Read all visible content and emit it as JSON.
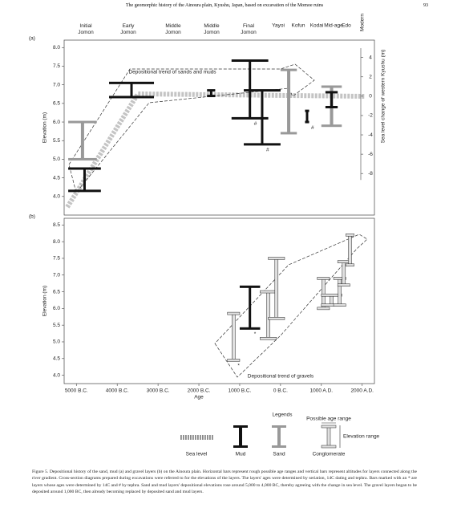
{
  "header": {
    "title": "The geomorphic history of the Ainoura plain, Kyushu, Japan, based on excavation of the Momoe ruins",
    "page": "93"
  },
  "figure": {
    "xlim": [
      -5300,
      2300
    ],
    "panels": [
      {
        "label": "(a)",
        "ylabel": "Elevation (m)",
        "ylim": [
          3.5,
          8.2
        ],
        "yticks": [
          {
            "value": 4,
            "label": "4.0"
          },
          4.5,
          {
            "value": 5,
            "label": "5.0"
          },
          5.5,
          {
            "value": 6,
            "label": "6.0"
          },
          6.5,
          {
            "value": 7,
            "label": "7.0"
          },
          7.5,
          {
            "value": 8,
            "label": "8.0"
          }
        ],
        "y2label": "Sea level change of western Kyushu (m)",
        "y2lim": [
          -12.3,
          5.8
        ],
        "y2ticks": [
          -8,
          -6,
          -4,
          -2,
          0,
          2,
          4
        ],
        "periods": [
          "Initial Jomon",
          "Early Jomon",
          "Middle Jomon",
          "Middle Jomon",
          "Final Jomon",
          "Yayoi",
          "Kofun",
          "Kodai",
          "Mid-age",
          "Edo",
          "Modern"
        ],
        "annotation": "Depositional trend of sands and muds",
        "bars": [
          {
            "type": "sand",
            "age": [
              -5200,
              -4500
            ],
            "elevation": [
              5.0,
              6.0
            ]
          },
          {
            "type": "mud",
            "age": [
              -5200,
              -4400
            ],
            "elevation": [
              4.15,
              4.75
            ]
          },
          {
            "type": "mud",
            "age": [
              -4200,
              -3100
            ],
            "elevation": [
              6.67,
              7.05
            ]
          },
          {
            "type": "mud",
            "age": [
              -1800,
              -1600
            ],
            "elevation": [
              6.7,
              6.85
            ]
          },
          {
            "type": "mud",
            "age": [
              -1200,
              -300
            ],
            "elevation": [
              6.1,
              7.65
            ],
            "mark": "#"
          },
          {
            "type": "mud",
            "age": [
              -900,
              0
            ],
            "elevation": [
              5.4,
              6.85
            ],
            "mark": "#"
          },
          {
            "type": "sand",
            "age": [
              0,
              400
            ],
            "elevation": [
              5.7,
              7.4
            ]
          },
          {
            "type": "mud",
            "age": [
              600,
              700
            ],
            "elevation": [
              6.0,
              6.3
            ],
            "mark": "#"
          },
          {
            "type": "sand",
            "age": [
              1000,
              1500
            ],
            "elevation": [
              5.9,
              6.95
            ]
          },
          {
            "type": "mud",
            "age": [
              1100,
              1400
            ],
            "elevation": [
              6.4,
              6.8
            ]
          }
        ]
      },
      {
        "label": "(b)",
        "ylabel": "Elevation (m)",
        "xlabel": "Age",
        "ylim": [
          3.75,
          8.7
        ],
        "yticks": [
          {
            "value": 4,
            "label": "4.0"
          },
          4.5,
          {
            "value": 5,
            "label": "5.0"
          },
          5.5,
          {
            "value": 6,
            "label": "6.0"
          },
          6.5,
          {
            "value": 7,
            "label": "7.0"
          },
          7.5,
          {
            "value": 8,
            "label": "8.0"
          },
          8.5
        ],
        "xticks": [
          {
            "value": -5000,
            "label": "5000 B.C."
          },
          {
            "value": -4000,
            "label": "4000 B.C."
          },
          {
            "value": -3000,
            "label": "3000 B.C."
          },
          {
            "value": -2000,
            "label": "2000 B.C."
          },
          {
            "value": -1000,
            "label": "1000 B.C."
          },
          {
            "value": 0,
            "label": "0 B.C."
          },
          {
            "value": 1000,
            "label": "1000 A.D."
          },
          {
            "value": 2000,
            "label": "2000 A.D."
          }
        ],
        "annotation": "Depositional trend of gravels",
        "bars": [
          {
            "type": "conglomerate",
            "age": [
              -1300,
              -1000
            ],
            "elevation": [
              4.45,
              5.85
            ],
            "mark": "*"
          },
          {
            "type": "mud",
            "age": [
              -1000,
              -500
            ],
            "elevation": [
              5.4,
              6.65
            ],
            "mark": "*"
          },
          {
            "type": "conglomerate",
            "age": [
              -500,
              -100
            ],
            "elevation": [
              5.1,
              6.5
            ]
          },
          {
            "type": "conglomerate",
            "age": [
              -300,
              100
            ],
            "elevation": [
              5.7,
              7.5
            ]
          },
          {
            "type": "conglomerate",
            "age": [
              900,
              1200
            ],
            "elevation": [
              6.0,
              6.9
            ]
          },
          {
            "type": "conglomerate",
            "age": [
              1000,
              1500
            ],
            "elevation": [
              6.1,
              6.4
            ]
          },
          {
            "type": "conglomerate",
            "age": [
              1300,
              1600
            ],
            "elevation": [
              6.1,
              6.9
            ]
          },
          {
            "type": "conglomerate",
            "age": [
              1400,
              1700
            ],
            "elevation": [
              6.7,
              7.4
            ]
          },
          {
            "type": "conglomerate",
            "age": [
              1600,
              1800
            ],
            "elevation": [
              7.3,
              8.2
            ]
          }
        ]
      }
    ],
    "legend": {
      "title": "Legends",
      "items": [
        {
          "name": "Sea level",
          "color": "#888888"
        },
        {
          "name": "Mud",
          "color": "#111111"
        },
        {
          "name": "Sand",
          "color": "#999999"
        },
        {
          "name": "Conglomerate",
          "color": "#e0e0e0"
        }
      ],
      "age_note": "Possible age range",
      "elevation_note": "Elevation range"
    }
  },
  "caption": "Figure 5. Depositional history of the sand, mud (a) and gravel layers (b) on the Ainoura plain. Horizontal bars represent rough possible age ranges and vertical bars represent altitudes for layers connected along the river gradient. Cross-section diagrams prepared during excavations were referred to for the elevations of the layers. The layers' ages were determined by seriation, 14C dating and tephra. Bars marked with an * are layers whose ages were determined by 14C and # by tephra. Sand and mud layers' depositional elevations rose around 5,000 to 4,000 BC, thereby agreeing with the change in sea level. The gravel layers began to be deposited around 1,000 BC, then already becoming replaced by deposited sand and mud layers."
}
